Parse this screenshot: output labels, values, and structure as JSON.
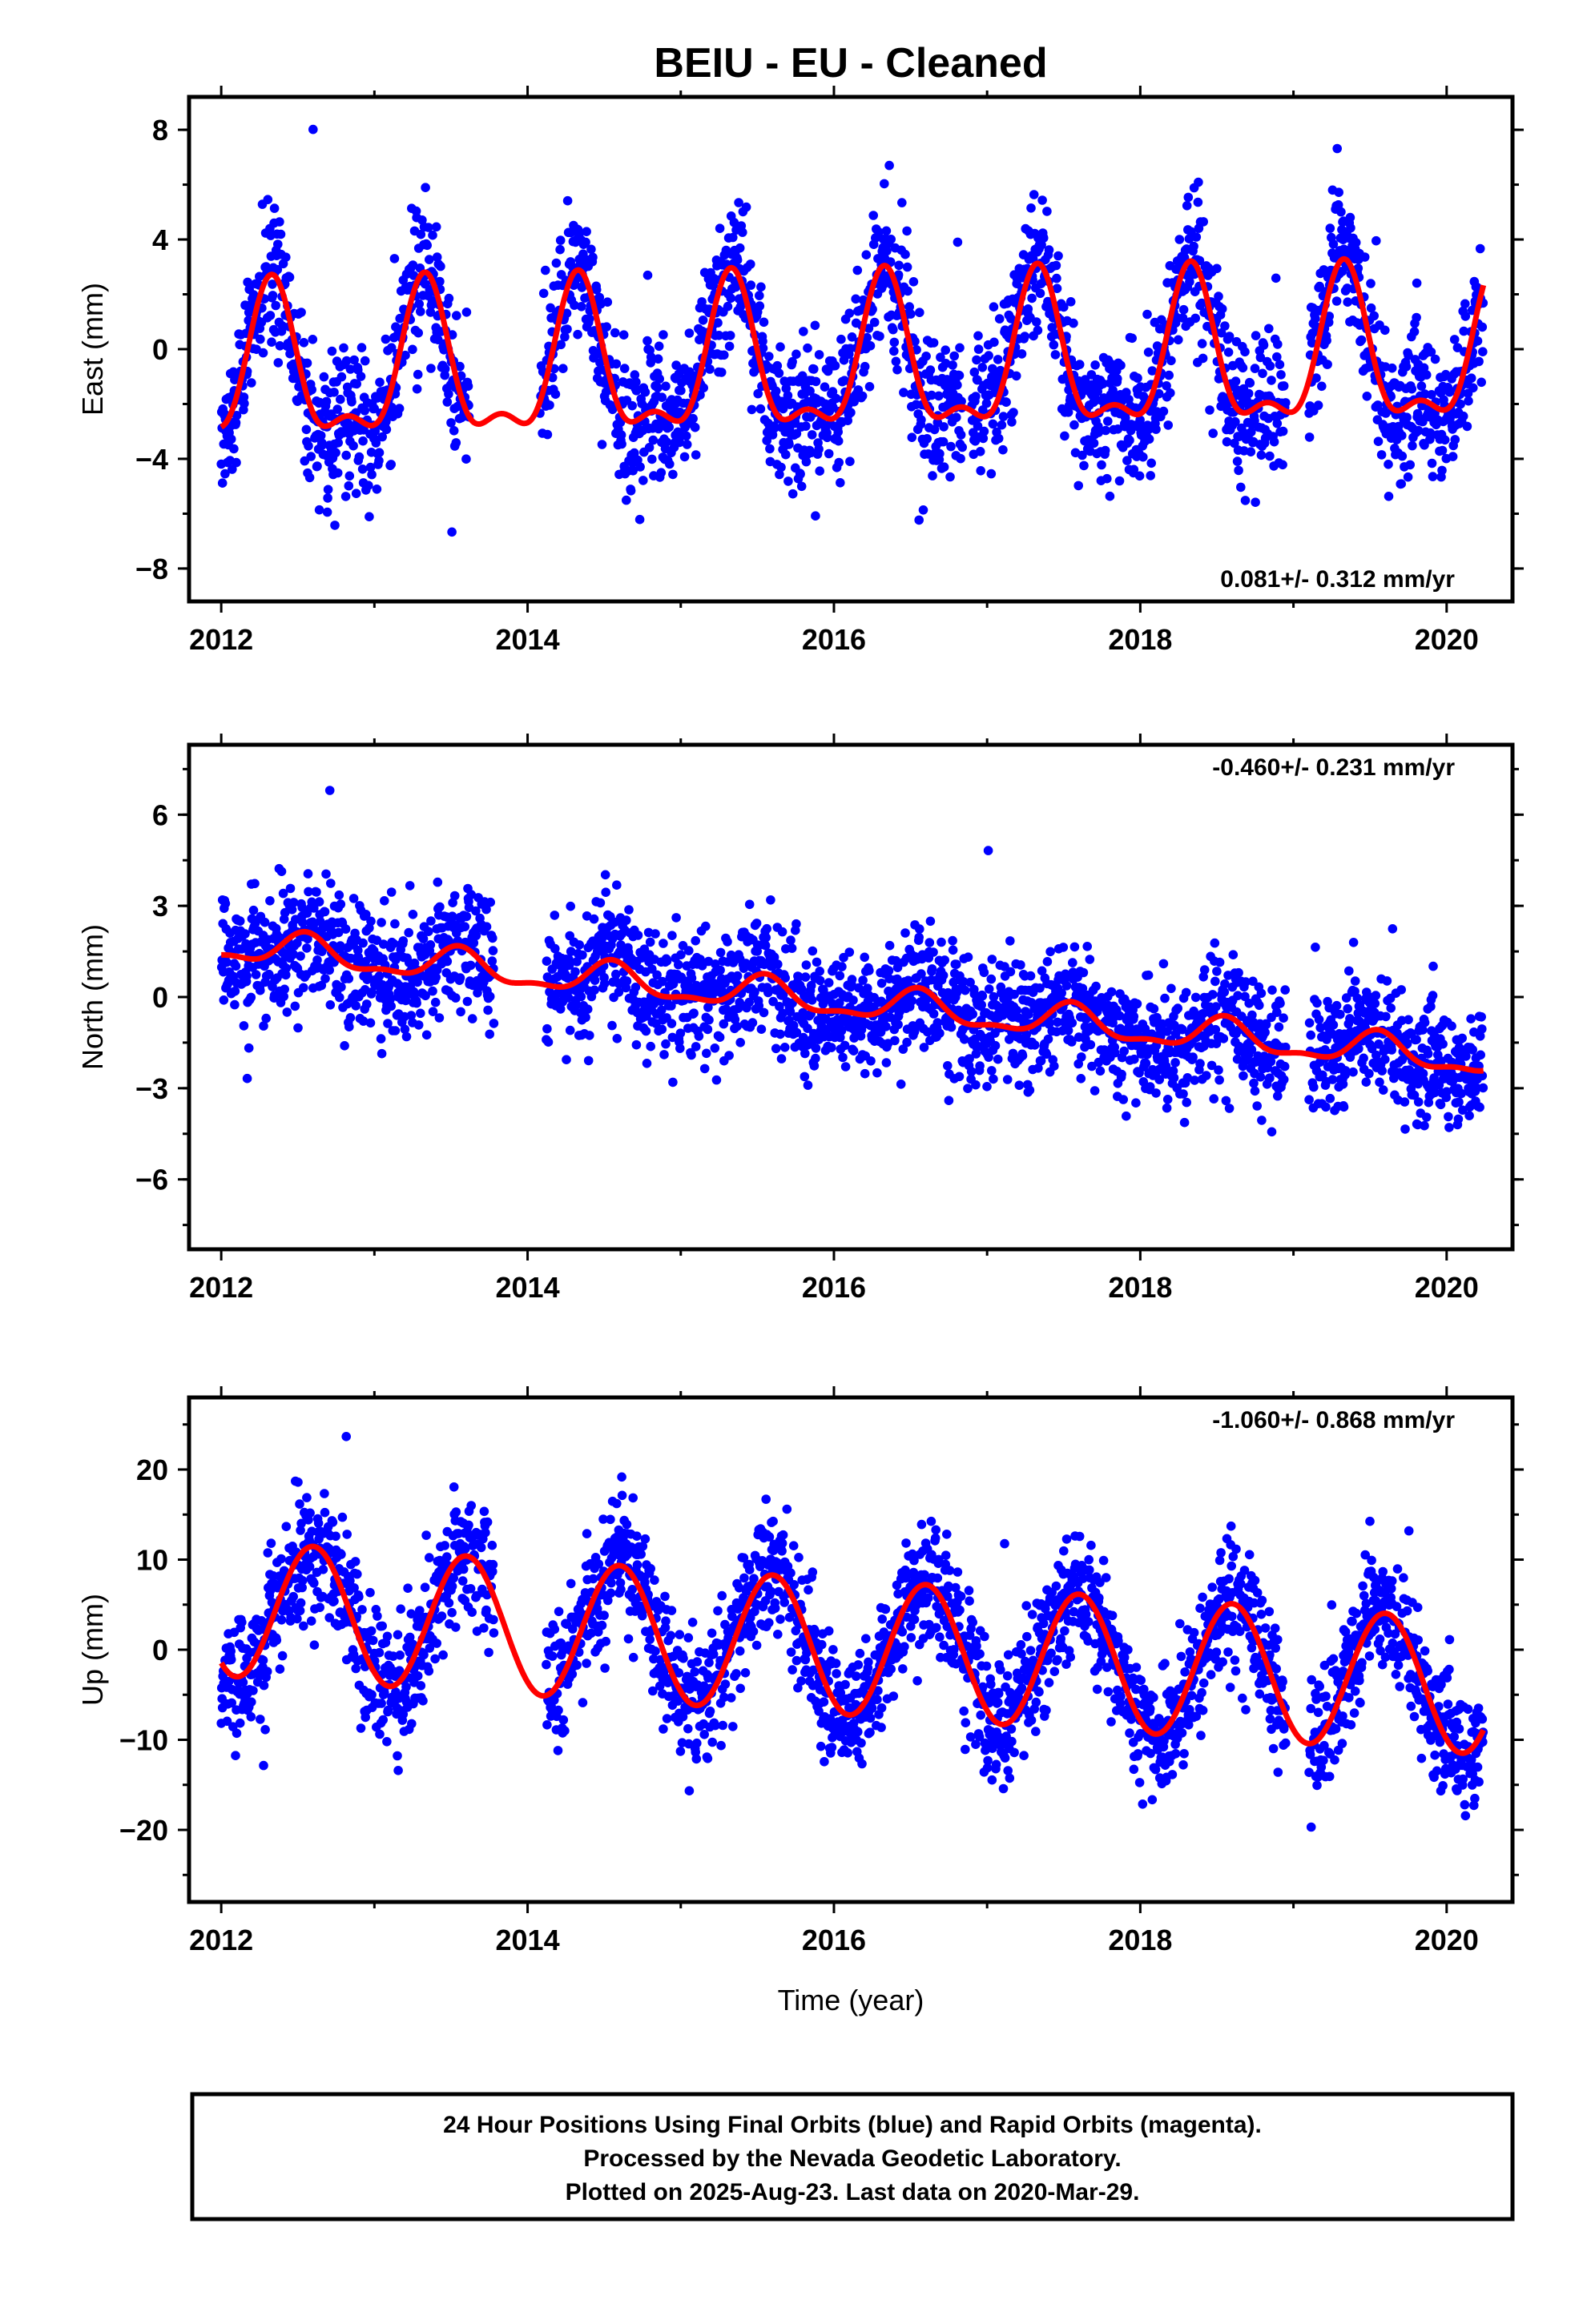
{
  "title": "BEIU  - EU - Cleaned",
  "xlabel": "Time (year)",
  "colors": {
    "points": "#0000ff",
    "fit": "#ff0000",
    "axis": "#000000"
  },
  "footer": [
    "24 Hour Positions Using Final Orbits (blue) and Rapid Orbits (magenta).",
    "Processed by the Nevada Geodetic Laboratory.",
    "Plotted on 2025-Aug-23. Last data on 2020-Mar-29."
  ],
  "chart_data": [
    {
      "type": "scatter",
      "ylabel": "East (mm)",
      "rate_text": "0.081+/- 0.312 mm/yr",
      "rate_position": "bottom-right",
      "xlim": [
        2011.79,
        2020.43
      ],
      "ylim": [
        -9.2,
        9.2
      ],
      "xticks": [
        2012,
        2014,
        2016,
        2018,
        2020
      ],
      "yticks": [
        -8,
        -4,
        0,
        4,
        8
      ],
      "yticklabels": [
        "−8",
        "−4",
        "0",
        "4",
        "8"
      ],
      "series": [
        {
          "kind": "points",
          "x_start": 2012.0,
          "x_end": 2020.24,
          "trend": 0.081,
          "offset": -1.0,
          "annual_amp": 2.6,
          "annual_peak": 2012.33,
          "semiannual_amp": 1.1,
          "noise_sd": 1.3,
          "gaps": [
            [
              2013.62,
              2014.08
            ],
            [
              2016.84,
              2016.9
            ],
            [
              2018.95,
              2019.1
            ]
          ]
        },
        {
          "kind": "fit",
          "x_start": 2012.0,
          "x_end": 2020.24,
          "trend": 0.081,
          "offset": -1.0,
          "annual_amp": 2.6,
          "annual_peak": 2012.33,
          "semiannual_amp": 1.1
        }
      ]
    },
    {
      "type": "scatter",
      "ylabel": "North (mm)",
      "rate_text": "-0.460+/- 0.231 mm/yr",
      "rate_position": "top-right",
      "xlim": [
        2011.79,
        2020.43
      ],
      "ylim": [
        -8.3,
        8.3
      ],
      "xticks": [
        2012,
        2014,
        2016,
        2018,
        2020
      ],
      "yticks": [
        -6,
        -3,
        0,
        3,
        6
      ],
      "yticklabels": [
        "−6",
        "−3",
        "0",
        "3",
        "6"
      ],
      "series": [
        {
          "kind": "points",
          "x_start": 2012.0,
          "x_end": 2020.24,
          "trend": -0.46,
          "offset": 1.7,
          "annual_amp": 0.5,
          "annual_peak": 2012.55,
          "semiannual_amp": 0.2,
          "noise_sd": 1.0,
          "gaps": [
            [
              2013.78,
              2014.12
            ],
            [
              2018.95,
              2019.1
            ]
          ]
        },
        {
          "kind": "fit",
          "x_start": 2012.0,
          "x_end": 2020.24,
          "trend": -0.46,
          "offset": 1.7,
          "annual_amp": 0.5,
          "annual_peak": 2012.55,
          "semiannual_amp": 0.2
        }
      ]
    },
    {
      "type": "scatter",
      "ylabel": "Up (mm)",
      "rate_text": "-1.060+/- 0.868 mm/yr",
      "rate_position": "top-right",
      "xlim": [
        2011.79,
        2020.43
      ],
      "ylim": [
        -28,
        28
      ],
      "xticks": [
        2012,
        2014,
        2016,
        2018,
        2020
      ],
      "yticks": [
        -20,
        -10,
        0,
        10,
        20
      ],
      "yticklabels": [
        "−20",
        "−10",
        "0",
        "10",
        "20"
      ],
      "series": [
        {
          "kind": "points",
          "x_start": 2012.0,
          "x_end": 2020.24,
          "trend": -1.06,
          "offset": 4.6,
          "annual_amp": 7.5,
          "annual_peak": 2012.6,
          "semiannual_amp": 0.0,
          "noise_sd": 3.5,
          "gaps": [
            [
              2013.78,
              2014.12
            ],
            [
              2018.95,
              2019.1
            ]
          ]
        },
        {
          "kind": "fit",
          "x_start": 2012.0,
          "x_end": 2020.24,
          "trend": -1.06,
          "offset": 4.6,
          "annual_amp": 7.5,
          "annual_peak": 2012.6,
          "semiannual_amp": 0.0
        }
      ]
    }
  ]
}
